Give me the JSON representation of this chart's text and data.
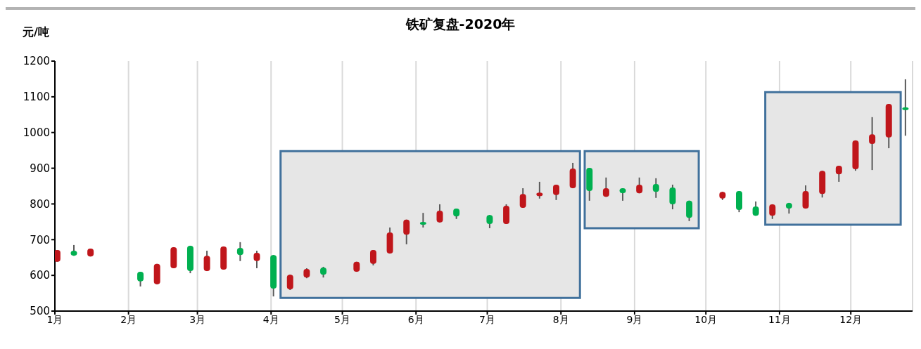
{
  "chart_data": {
    "type": "candlestick",
    "title": "铁矿复盘-2020年",
    "ylabel": "元/吨",
    "x": [
      "2020-01-02",
      "2020-01-09",
      "2020-01-16",
      "2020-02-06",
      "2020-02-13",
      "2020-02-20",
      "2020-02-27",
      "2020-03-05",
      "2020-03-12",
      "2020-03-19",
      "2020-03-26",
      "2020-04-02",
      "2020-04-09",
      "2020-04-16",
      "2020-04-23",
      "2020-05-07",
      "2020-05-14",
      "2020-05-21",
      "2020-05-28",
      "2020-06-04",
      "2020-06-11",
      "2020-06-18",
      "2020-07-02",
      "2020-07-09",
      "2020-07-16",
      "2020-07-23",
      "2020-07-30",
      "2020-08-06",
      "2020-08-13",
      "2020-08-20",
      "2020-08-27",
      "2020-09-03",
      "2020-09-10",
      "2020-09-17",
      "2020-09-24",
      "2020-10-08",
      "2020-10-15",
      "2020-10-22",
      "2020-10-29",
      "2020-11-05",
      "2020-11-12",
      "2020-11-19",
      "2020-11-26",
      "2020-12-03",
      "2020-12-10",
      "2020-12-17",
      "2020-12-24"
    ],
    "ohlc": [
      [
        638,
        671,
        638,
        671
      ],
      [
        669,
        685,
        655,
        655
      ],
      [
        653,
        675,
        653,
        675
      ],
      [
        610,
        610,
        569,
        583
      ],
      [
        575,
        632,
        575,
        632
      ],
      [
        620,
        679,
        620,
        679
      ],
      [
        683,
        683,
        606,
        612
      ],
      [
        612,
        669,
        612,
        655
      ],
      [
        616,
        681,
        616,
        681
      ],
      [
        677,
        693,
        640,
        657
      ],
      [
        640,
        669,
        620,
        663
      ],
      [
        657,
        657,
        541,
        563
      ],
      [
        561,
        602,
        559,
        602
      ],
      [
        594,
        620,
        592,
        618
      ],
      [
        622,
        624,
        594,
        602
      ],
      [
        610,
        638,
        610,
        638
      ],
      [
        632,
        671,
        628,
        671
      ],
      [
        661,
        734,
        661,
        720
      ],
      [
        714,
        756,
        687,
        756
      ],
      [
        748,
        775,
        734,
        744
      ],
      [
        748,
        799,
        748,
        781
      ],
      [
        787,
        787,
        758,
        765
      ],
      [
        769,
        769,
        732,
        744
      ],
      [
        744,
        799,
        744,
        795
      ],
      [
        789,
        844,
        789,
        828
      ],
      [
        822,
        862,
        815,
        832
      ],
      [
        825,
        854,
        811,
        854
      ],
      [
        844,
        915,
        844,
        899
      ],
      [
        901,
        901,
        809,
        836
      ],
      [
        820,
        874,
        820,
        844
      ],
      [
        844,
        844,
        809,
        830
      ],
      [
        830,
        874,
        830,
        854
      ],
      [
        856,
        872,
        817,
        834
      ],
      [
        846,
        854,
        785,
        799
      ],
      [
        809,
        809,
        752,
        761
      ],
      [
        815,
        834,
        811,
        834
      ],
      [
        836,
        836,
        777,
        783
      ],
      [
        793,
        807,
        767,
        767
      ],
      [
        767,
        799,
        758,
        799
      ],
      [
        803,
        803,
        773,
        787
      ],
      [
        787,
        852,
        787,
        836
      ],
      [
        828,
        893,
        818,
        893
      ],
      [
        883,
        907,
        862,
        907
      ],
      [
        897,
        978,
        893,
        978
      ],
      [
        968,
        1043,
        895,
        995
      ],
      [
        986,
        1080,
        956,
        1080
      ],
      [
        1070,
        1149,
        991,
        1064
      ]
    ],
    "colors": [
      "#c0161b",
      "#00b050",
      "#c0161b",
      "#00b050",
      "#c0161b",
      "#c0161b",
      "#00b050",
      "#c0161b",
      "#c0161b",
      "#00b050",
      "#c0161b",
      "#00b050",
      "#c0161b",
      "#c0161b",
      "#00b050",
      "#c0161b",
      "#c0161b",
      "#c0161b",
      "#c0161b",
      "#00b050",
      "#c0161b",
      "#00b050",
      "#00b050",
      "#c0161b",
      "#c0161b",
      "#c0161b",
      "#c0161b",
      "#c0161b",
      "#00b050",
      "#c0161b",
      "#00b050",
      "#c0161b",
      "#00b050",
      "#00b050",
      "#00b050",
      "#c0161b",
      "#00b050",
      "#00b050",
      "#c0161b",
      "#00b050",
      "#c0161b",
      "#c0161b",
      "#c0161b",
      "#c0161b",
      "#c0161b",
      "#c0161b",
      "#00b050"
    ],
    "xlim": [
      "2020-01-01",
      "2020-12-27"
    ],
    "xticks": [
      {
        "value": "2020-01-01",
        "label": "1月"
      },
      {
        "value": "2020-02-01",
        "label": "2月"
      },
      {
        "value": "2020-03-01",
        "label": "3月"
      },
      {
        "value": "2020-04-01",
        "label": "4月"
      },
      {
        "value": "2020-05-01",
        "label": "5月"
      },
      {
        "value": "2020-06-01",
        "label": "6月"
      },
      {
        "value": "2020-07-01",
        "label": "7月"
      },
      {
        "value": "2020-08-01",
        "label": "8月"
      },
      {
        "value": "2020-09-01",
        "label": "9月"
      },
      {
        "value": "2020-10-01",
        "label": "10月"
      },
      {
        "value": "2020-11-01",
        "label": "11月"
      },
      {
        "value": "2020-12-01",
        "label": "12月"
      }
    ],
    "ylim": [
      500,
      1200
    ],
    "yticks": [
      500,
      600,
      700,
      800,
      900,
      1000,
      1100,
      1200
    ],
    "grid": "x"
  }
}
